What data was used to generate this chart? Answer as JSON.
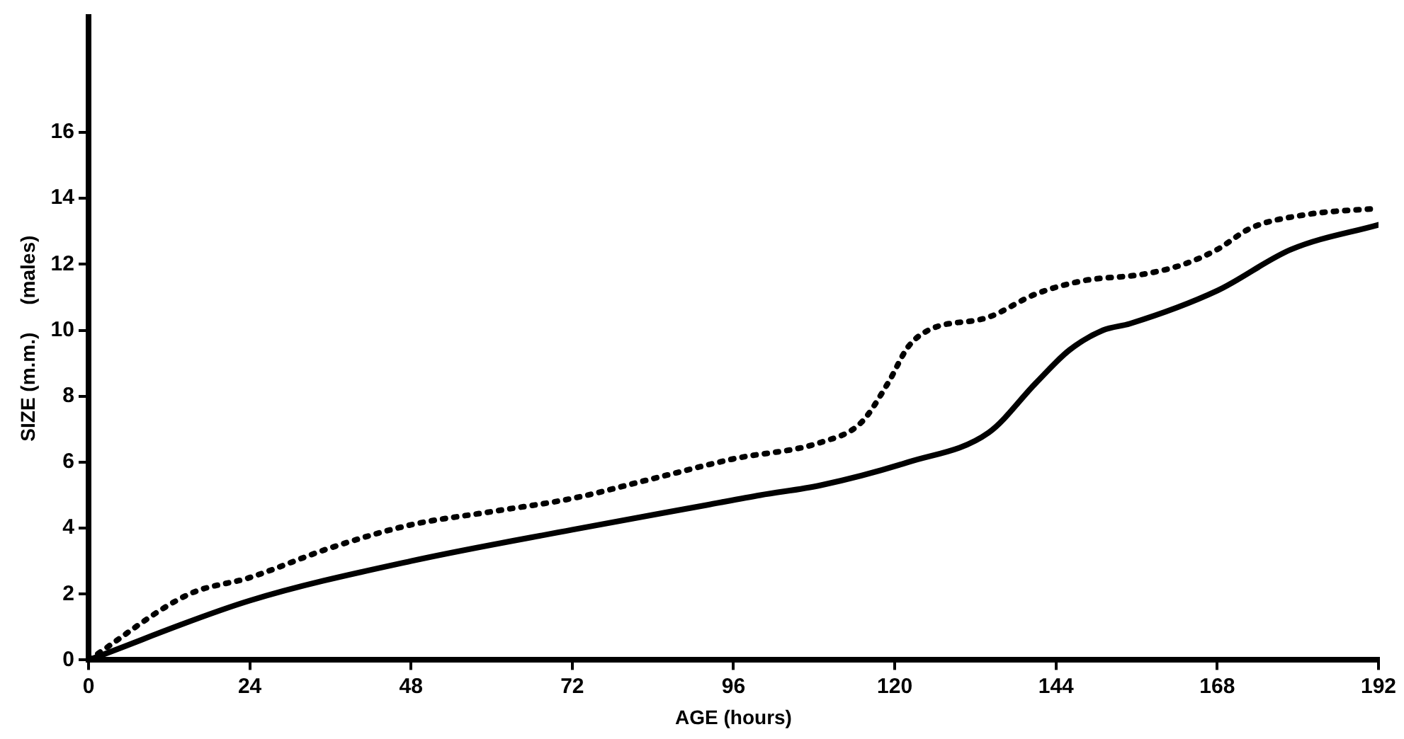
{
  "chart_data": {
    "type": "line",
    "xlabel": "AGE (hours)",
    "ylabel": "SIZE (m.m.)     (males)",
    "xlim": [
      0,
      192
    ],
    "xticks": [
      0,
      24,
      48,
      72,
      96,
      120,
      144,
      168,
      192
    ],
    "ylim": [
      0,
      19.5
    ],
    "yticks": [
      0,
      2,
      4,
      6,
      8,
      10,
      12,
      14,
      16
    ],
    "grid": false,
    "legend": false,
    "marker": "none",
    "series": [
      {
        "color": "#000000",
        "line_style": "solid",
        "x": [
          0,
          24,
          48,
          72,
          92,
          100,
          109,
          122,
          134,
          141,
          146,
          151,
          155,
          168,
          179,
          192
        ],
        "values": [
          0,
          1.8,
          3.0,
          3.95,
          4.7,
          5.0,
          5.3,
          6.0,
          6.9,
          8.4,
          9.4,
          10.0,
          10.2,
          11.2,
          12.45,
          13.2
        ]
      },
      {
        "color": "#000000",
        "line_style": "dotted",
        "x": [
          0,
          15,
          24,
          36,
          48,
          60,
          72,
          84,
          96,
          109,
          115,
          119,
          122,
          125,
          134,
          141,
          148,
          157,
          163,
          168,
          173,
          181,
          192
        ],
        "values": [
          0,
          2.0,
          2.5,
          3.4,
          4.1,
          4.5,
          4.9,
          5.5,
          6.1,
          6.6,
          7.2,
          8.4,
          9.5,
          10.0,
          10.4,
          11.1,
          11.5,
          11.7,
          12.0,
          12.45,
          13.1,
          13.5,
          13.7
        ]
      }
    ]
  }
}
